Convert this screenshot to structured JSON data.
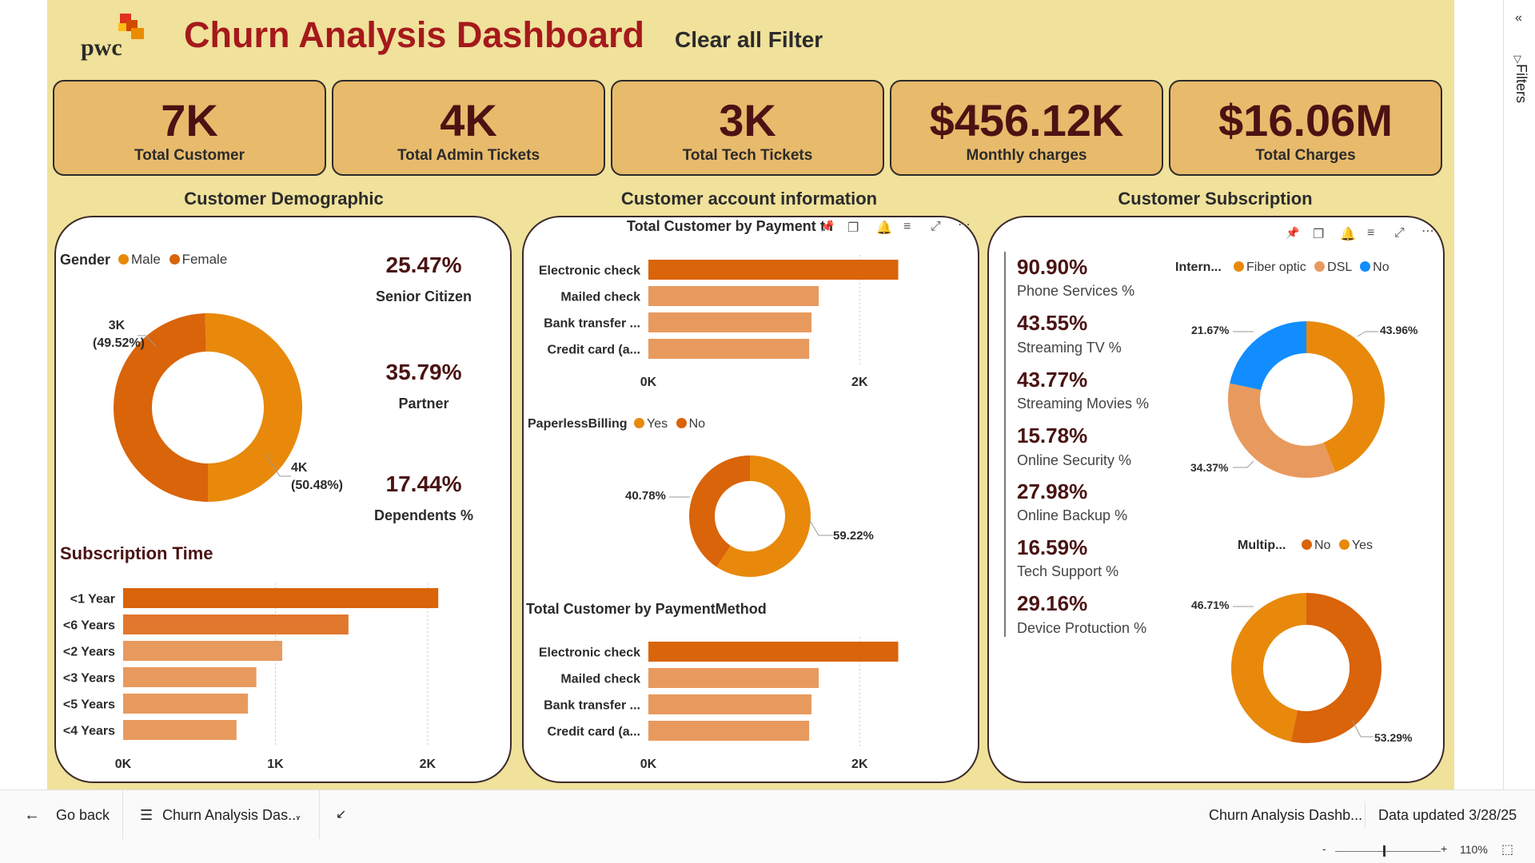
{
  "header": {
    "logo_text": "pwc",
    "title": "Churn Analysis Dashboard",
    "clear_filter": "Clear all Filter"
  },
  "kpis": [
    {
      "value": "7K",
      "label": "Total Customer"
    },
    {
      "value": "4K",
      "label": "Total Admin Tickets"
    },
    {
      "value": "3K",
      "label": "Total Tech Tickets"
    },
    {
      "value": "$456.12K",
      "label": "Monthly charges"
    },
    {
      "value": "$16.06M",
      "label": "Total Charges"
    }
  ],
  "sections": {
    "demographic": "Customer Demographic",
    "account": "Customer account information",
    "subscription": "Customer Subscription"
  },
  "demographic": {
    "gender_title": "Gender",
    "gender_legend": [
      "Male",
      "Female"
    ],
    "label_male": [
      "4K",
      "(50.48%)"
    ],
    "label_female": [
      "3K",
      "(49.52%)"
    ],
    "stats": [
      {
        "value": "25.47%",
        "label": "Senior Citizen"
      },
      {
        "value": "35.79%",
        "label": "Partner"
      },
      {
        "value": "17.44%",
        "label": "Dependents %"
      }
    ],
    "subscription_title": "Subscription Time",
    "axis_ticks": [
      "0K",
      "1K",
      "2K"
    ]
  },
  "account": {
    "payment_title": "Total Customer by Payment",
    "payment_title_suffix": "t I",
    "paperless_title": "PaperlessBilling",
    "paperless_legend": [
      "Yes",
      "No"
    ],
    "paperless_labels": {
      "no": "40.78%",
      "yes": "59.22%"
    },
    "method_title": "Total Customer by PaymentMethod",
    "axis_ticks": [
      "0K",
      "2K"
    ]
  },
  "subscription": {
    "stats": [
      {
        "value": "90.90%",
        "label": "Phone Services %"
      },
      {
        "value": "43.55%",
        "label": "Streaming TV %"
      },
      {
        "value": "43.77%",
        "label": "Streaming Movies %"
      },
      {
        "value": "15.78%",
        "label": "Online Security %"
      },
      {
        "value": "27.98%",
        "label": "Online Backup %"
      },
      {
        "value": "16.59%",
        "label": "Tech Support %"
      },
      {
        "value": "29.16%",
        "label": "Device Protuction %"
      }
    ],
    "internet_title": "Intern...",
    "internet_legend": [
      "Fiber optic",
      "DSL",
      "No"
    ],
    "internet_labels": {
      "no": "21.67%",
      "fiber": "43.96%",
      "dsl": "34.37%"
    },
    "multiple_title": "Multip...",
    "multiple_legend": [
      "No",
      "Yes"
    ],
    "multiple_labels": {
      "yes": "46.71%",
      "no": "53.29%"
    }
  },
  "bottom_bar": {
    "go_back": "Go back",
    "page_name": "Churn Analysis Das...",
    "report_name": "Churn Analysis Dashb...",
    "data_updated": "Data updated 3/28/25"
  },
  "status_bar": {
    "zoom": "110%",
    "minus": "-",
    "plus": "+"
  },
  "sidebar": {
    "label": "Filters"
  },
  "chart_data": [
    {
      "type": "pie",
      "title": "Gender",
      "categories": [
        "Male",
        "Female"
      ],
      "values": [
        50.48,
        49.52
      ],
      "colors": [
        "#e8890c",
        "#d9640a"
      ]
    },
    {
      "type": "bar",
      "title": "Subscription Time",
      "categories": [
        "<1 Year",
        "<6 Years",
        "<2 Years",
        "<3 Years",
        "<5 Years",
        "<4 Years"
      ],
      "values": [
        2070,
        1480,
        1045,
        875,
        820,
        745
      ],
      "xlim": [
        0,
        2300
      ],
      "ticks": [
        0,
        1000,
        2000
      ],
      "colors": [
        "#d9640a",
        "#e0782e",
        "#e89a5e",
        "#e89a5e",
        "#e89a5e",
        "#e89a5e"
      ]
    },
    {
      "type": "bar",
      "title": "Total Customer by Payment",
      "categories": [
        "Electronic check",
        "Mailed check",
        "Bank transfer ...",
        "Credit card (a..."
      ],
      "values": [
        2365,
        1612,
        1544,
        1522
      ],
      "xlim": [
        0,
        2800
      ],
      "ticks": [
        0,
        2000
      ],
      "colors": [
        "#d9640a",
        "#e89a5e",
        "#e89a5e",
        "#e89a5e"
      ]
    },
    {
      "type": "pie",
      "title": "PaperlessBilling",
      "categories": [
        "Yes",
        "No"
      ],
      "values": [
        59.22,
        40.78
      ],
      "colors": [
        "#e8890c",
        "#d9640a"
      ]
    },
    {
      "type": "bar",
      "title": "Total Customer by PaymentMethod",
      "categories": [
        "Electronic check",
        "Mailed check",
        "Bank transfer ...",
        "Credit card (a..."
      ],
      "values": [
        2365,
        1612,
        1544,
        1522
      ],
      "xlim": [
        0,
        2800
      ],
      "ticks": [
        0,
        2000
      ],
      "colors": [
        "#d9640a",
        "#e89a5e",
        "#e89a5e",
        "#e89a5e"
      ]
    },
    {
      "type": "pie",
      "title": "Intern...",
      "categories": [
        "Fiber optic",
        "DSL",
        "No"
      ],
      "values": [
        43.96,
        34.37,
        21.67
      ],
      "colors": [
        "#e8890c",
        "#e89a5e",
        "#118dff"
      ]
    },
    {
      "type": "pie",
      "title": "Multip...",
      "categories": [
        "No",
        "Yes"
      ],
      "values": [
        53.29,
        46.71
      ],
      "colors": [
        "#d9640a",
        "#e8890c"
      ]
    }
  ]
}
